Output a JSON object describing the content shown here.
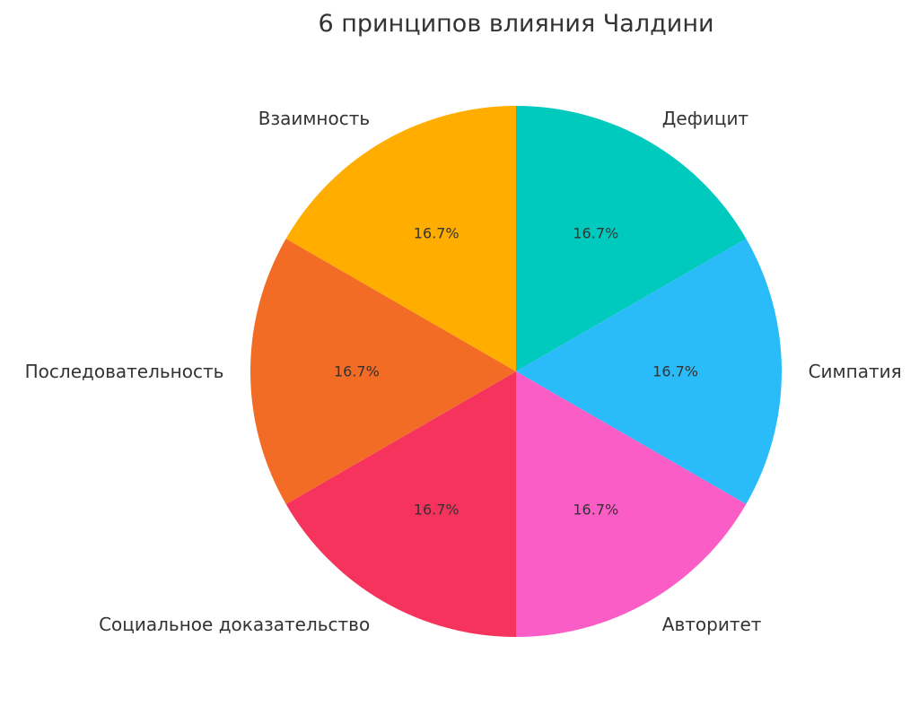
{
  "chart_data": {
    "type": "pie",
    "title": "6 принципов влияния Чалдини",
    "start_angle_deg": 90,
    "direction": "clockwise",
    "slices": [
      {
        "label": "Дефицит",
        "value": 16.7,
        "pct_label": "16.7%",
        "color": "#00C9BE"
      },
      {
        "label": "Симпатия",
        "value": 16.7,
        "pct_label": "16.7%",
        "color": "#29BCF9"
      },
      {
        "label": "Авторитет",
        "value": 16.7,
        "pct_label": "16.7%",
        "color": "#FA5DC6"
      },
      {
        "label": "Социальное доказательство",
        "value": 16.7,
        "pct_label": "16.7%",
        "color": "#F5335D"
      },
      {
        "label": "Последовательность",
        "value": 16.7,
        "pct_label": "16.7%",
        "color": "#F26C26"
      },
      {
        "label": "Взаимность",
        "value": 16.7,
        "pct_label": "16.7%",
        "color": "#FFAE00"
      }
    ]
  }
}
